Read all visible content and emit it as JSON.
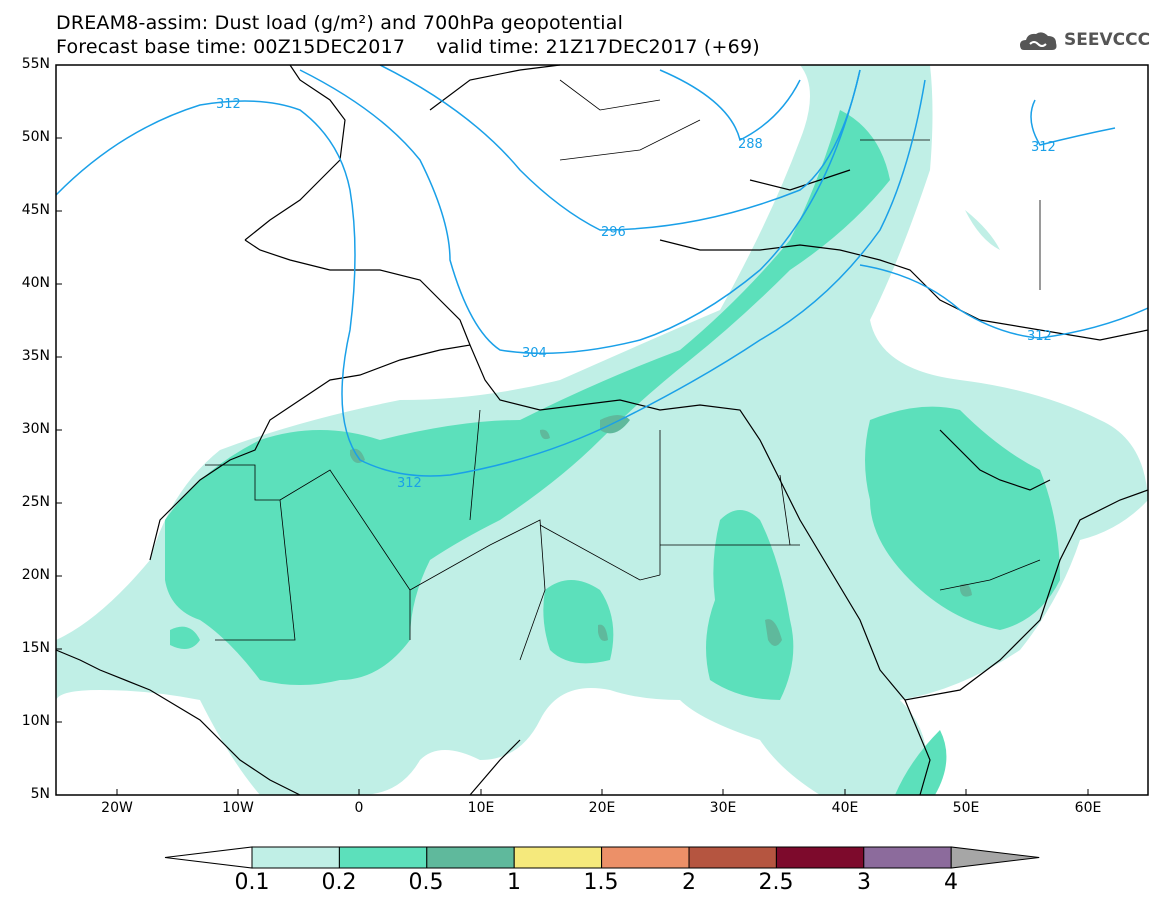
{
  "title": {
    "line1": "DREAM8-assim: Dust load (g/m²) and 700hPa geopotential",
    "line2": "Forecast base time: 00Z15DEC2017     valid time: 21Z17DEC2017 (+69)"
  },
  "logo": {
    "text": "SEEVCCC",
    "icon": "cloud-logo-icon"
  },
  "map": {
    "lon_range": [
      -25,
      65
    ],
    "lat_range": [
      5,
      55
    ],
    "lat_ticks": [
      "55N",
      "50N",
      "45N",
      "40N",
      "35N",
      "30N",
      "25N",
      "20N",
      "15N",
      "10N",
      "5N"
    ],
    "lon_ticks": [
      "20W",
      "10W",
      "0",
      "10E",
      "20E",
      "30E",
      "40E",
      "50E",
      "60E"
    ],
    "contour_labels": [
      "312",
      "288",
      "312",
      "296",
      "304",
      "312",
      "312"
    ]
  },
  "colorbar": {
    "levels": [
      "0.1",
      "0.2",
      "0.5",
      "1",
      "1.5",
      "2",
      "2.5",
      "3",
      "4"
    ],
    "colors": [
      "#c0efe6",
      "#5ce0bb",
      "#5fb99c",
      "#f5e97c",
      "#ec9068",
      "#b55540",
      "#7d0a2c",
      "#8c6b9c"
    ],
    "under_color": "#ffffff",
    "over_color": "#a6a6a6"
  },
  "colors": {
    "contour": "#1aa0e8",
    "coast": "#000000"
  }
}
